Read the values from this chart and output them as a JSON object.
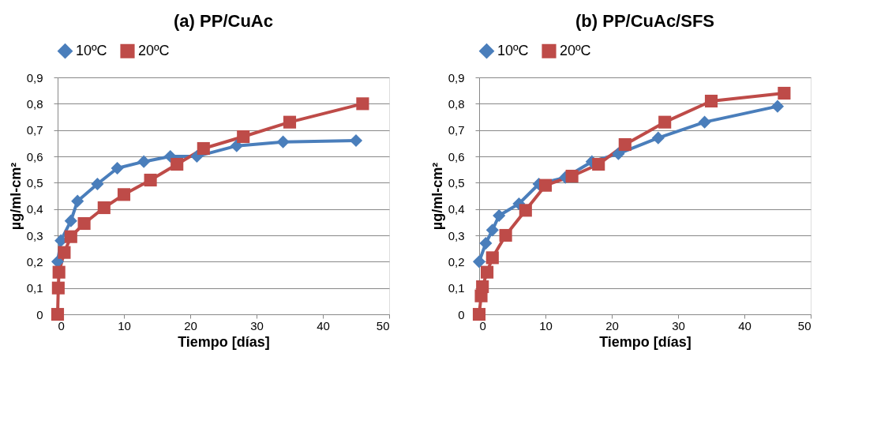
{
  "chart_data": [
    {
      "type": "line",
      "title": "(a) PP/CuAc",
      "xlabel": "Tiempo [días]",
      "ylabel": "µg/ml-cm²",
      "legend": "top",
      "grid": "y",
      "line_style": "solid",
      "xlim": [
        0,
        50
      ],
      "xticks": [
        0,
        10,
        20,
        30,
        40,
        50
      ],
      "ylim": [
        0,
        0.9
      ],
      "yticks": [
        0,
        {
          "value": 0.1,
          "label": "0,1"
        },
        {
          "value": 0.2,
          "label": "0,2"
        },
        {
          "value": 0.3,
          "label": "0,3"
        },
        {
          "value": 0.4,
          "label": "0,4"
        },
        {
          "value": 0.5,
          "label": "0,5"
        },
        {
          "value": 0.6,
          "label": "0,6"
        },
        {
          "value": 0.7,
          "label": "0,7"
        },
        {
          "value": 0.8,
          "label": "0,8"
        },
        {
          "value": 0.9,
          "label": "0,9"
        }
      ],
      "series": [
        {
          "name": "10ºC",
          "color": "#4a7ebb",
          "marker": "diamond",
          "x": [
            0,
            0.5,
            2,
            3,
            6,
            9,
            13,
            17,
            21,
            27,
            34,
            45
          ],
          "values": [
            0.2,
            0.28,
            0.355,
            0.43,
            0.495,
            0.555,
            0.58,
            0.6,
            0.6,
            0.64,
            0.655,
            0.66
          ]
        },
        {
          "name": "20ºC",
          "color": "#be4b48",
          "marker": "square",
          "x": [
            0,
            0.1,
            0.2,
            1,
            2,
            4,
            7,
            10,
            14,
            18,
            22,
            28,
            35,
            46
          ],
          "values": [
            0,
            0.1,
            0.16,
            0.235,
            0.295,
            0.345,
            0.405,
            0.455,
            0.51,
            0.57,
            0.63,
            0.675,
            0.73,
            0.8
          ]
        }
      ]
    },
    {
      "type": "line",
      "title": "(b) PP/CuAc/SFS",
      "xlabel": "Tiempo [días]",
      "ylabel": "µg/ml-cm²",
      "legend": "top",
      "grid": "y",
      "line_style": "solid",
      "xlim": [
        0,
        50
      ],
      "xticks": [
        0,
        10,
        20,
        30,
        40,
        50
      ],
      "ylim": [
        0,
        0.9
      ],
      "yticks": [
        0,
        {
          "value": 0.1,
          "label": "0,1"
        },
        {
          "value": 0.2,
          "label": "0,2"
        },
        {
          "value": 0.3,
          "label": "0,3"
        },
        {
          "value": 0.4,
          "label": "0,4"
        },
        {
          "value": 0.5,
          "label": "0,5"
        },
        {
          "value": 0.6,
          "label": "0,6"
        },
        {
          "value": 0.7,
          "label": "0,7"
        },
        {
          "value": 0.8,
          "label": "0,8"
        },
        {
          "value": 0.9,
          "label": "0,9"
        }
      ],
      "series": [
        {
          "name": "10ºC",
          "color": "#4a7ebb",
          "marker": "diamond",
          "x": [
            0,
            1,
            2,
            3,
            6,
            9,
            13,
            17,
            21,
            27,
            34,
            45
          ],
          "values": [
            0.2,
            0.27,
            0.32,
            0.375,
            0.42,
            0.495,
            0.52,
            0.58,
            0.61,
            0.67,
            0.73,
            0.79
          ]
        },
        {
          "name": "20ºC",
          "color": "#be4b48",
          "marker": "square",
          "x": [
            0,
            0.3,
            0.5,
            1.2,
            2,
            4,
            7,
            10,
            14,
            18,
            22,
            28,
            35,
            46
          ],
          "values": [
            0,
            0.07,
            0.105,
            0.16,
            0.215,
            0.3,
            0.395,
            0.49,
            0.525,
            0.57,
            0.645,
            0.73,
            0.81,
            0.84
          ]
        }
      ]
    }
  ]
}
